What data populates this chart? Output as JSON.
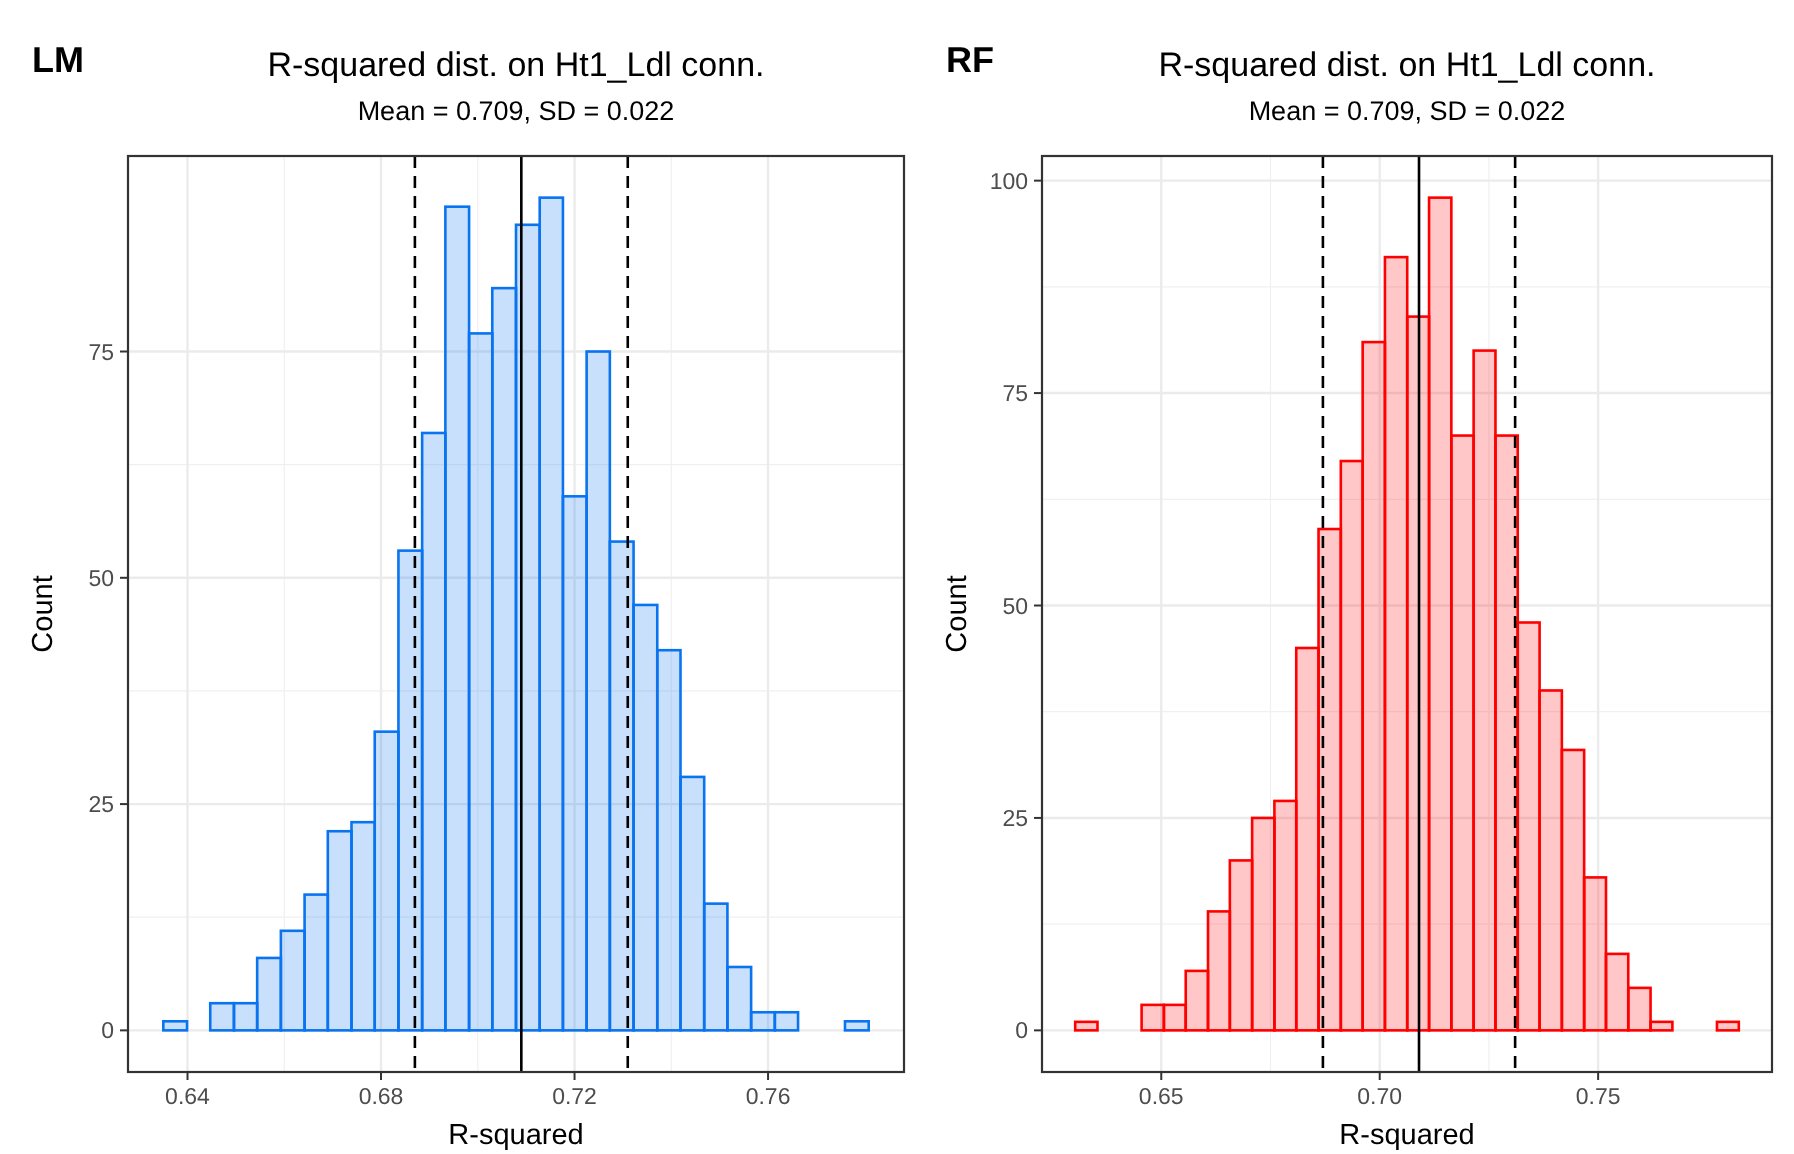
{
  "chart_data": [
    {
      "type": "histogram",
      "title": "R-squared dist. on Ht1_Ldl conn.",
      "subtitle": "Mean = 0.709, SD = 0.022",
      "xlabel": "R-squared",
      "ylabel": "Count",
      "annotations": [
        "LM"
      ],
      "color": "#0a74f0",
      "bins": [
        0.635,
        0.6399,
        0.6447,
        0.6496,
        0.6544,
        0.6593,
        0.6642,
        0.669,
        0.6739,
        0.6787,
        0.6836,
        0.6885,
        0.6933,
        0.6982,
        0.703,
        0.7079,
        0.7128,
        0.7176,
        0.7225,
        0.7273,
        0.7322,
        0.7371,
        0.7419,
        0.7468,
        0.7516,
        0.7565,
        0.7614,
        0.7662,
        0.7711,
        0.7759,
        0.7808
      ],
      "values": [
        1,
        0,
        3,
        3,
        8,
        11,
        15,
        22,
        23,
        33,
        53,
        66,
        91,
        77,
        82,
        89,
        92,
        59,
        75,
        54,
        47,
        42,
        28,
        14,
        7,
        2,
        2,
        0,
        0,
        1
      ],
      "xlim": [
        0.6277,
        0.7881
      ],
      "xticks": [
        0.64,
        0.68,
        0.72,
        0.76
      ],
      "ylim": [
        -4.6,
        96.6
      ],
      "yticks": [
        0,
        25,
        50,
        75
      ],
      "grid": true,
      "ref_lines": [
        {
          "axis": "x",
          "value": 0.687,
          "line_style": "dashed",
          "color": "#000000"
        },
        {
          "axis": "x",
          "value": 0.709,
          "line_style": "solid",
          "color": "#000000"
        },
        {
          "axis": "x",
          "value": 0.731,
          "line_style": "dashed",
          "color": "#000000"
        }
      ]
    },
    {
      "type": "histogram",
      "title": "R-squared dist. on Ht1_Ldl conn.",
      "subtitle": "Mean = 0.709, SD = 0.022",
      "xlabel": "R-squared",
      "ylabel": "Count",
      "annotations": [
        "RF"
      ],
      "color": "#ff0000",
      "bins": [
        0.6303,
        0.6354,
        0.6404,
        0.6455,
        0.6506,
        0.6556,
        0.6607,
        0.6657,
        0.6708,
        0.6759,
        0.6809,
        0.686,
        0.6911,
        0.6961,
        0.7012,
        0.7063,
        0.7113,
        0.7164,
        0.7215,
        0.7265,
        0.7316,
        0.7366,
        0.7417,
        0.7468,
        0.7518,
        0.7569,
        0.762,
        0.767,
        0.7721,
        0.7772,
        0.7822
      ],
      "values": [
        1,
        0,
        0,
        3,
        3,
        7,
        14,
        20,
        25,
        27,
        45,
        59,
        67,
        81,
        91,
        84,
        98,
        70,
        80,
        70,
        48,
        40,
        33,
        18,
        9,
        5,
        1,
        0,
        0,
        1
      ],
      "xlim": [
        0.6227,
        0.7898
      ],
      "xticks": [
        0.65,
        {
          "value": 0.7,
          "label": "0.70"
        },
        0.75
      ],
      "ylim": [
        -4.9,
        102.9
      ],
      "yticks": [
        0,
        25,
        50,
        75,
        100
      ],
      "grid": true,
      "ref_lines": [
        {
          "axis": "x",
          "value": 0.687,
          "line_style": "dashed",
          "color": "#000000"
        },
        {
          "axis": "x",
          "value": 0.709,
          "line_style": "solid",
          "color": "#000000"
        },
        {
          "axis": "x",
          "value": 0.731,
          "line_style": "dashed",
          "color": "#000000"
        }
      ]
    }
  ]
}
